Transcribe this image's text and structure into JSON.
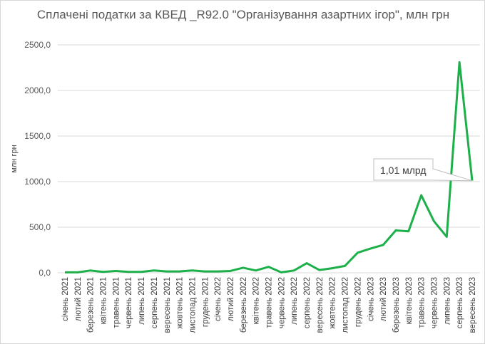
{
  "chart_data": {
    "type": "line",
    "title": "Сплачені податки за КВЕД _R92.0 \"Організування азартних ігор\", млн грн",
    "xlabel": "",
    "ylabel": "млн грн",
    "ylim": [
      0,
      2500
    ],
    "yticks": [
      "0,0",
      "500,0",
      "1000,0",
      "1500,0",
      "2000,0",
      "2500,0"
    ],
    "grid": true,
    "color": "#1db04a",
    "categories": [
      "січень 2021",
      "лютий 2021",
      "березень 2021",
      "квітень 2021",
      "травень 2021",
      "червень 2021",
      "липень 2021",
      "серпень 2021",
      "вересень 2021",
      "жовтень 2021",
      "листопад 2021",
      "грудень 2021",
      "січень 2022",
      "лютий 2022",
      "березень 2022",
      "квітень 2022",
      "травень 2022",
      "червень 2022",
      "липень 2022",
      "серпень 2022",
      "вересень 2022",
      "жовтень 2022",
      "листопад 2022",
      "грудень 2022",
      "січень 2023",
      "лютий 2023",
      "березень 2023",
      "квітень 2023",
      "травень 2023",
      "червень 2023",
      "липень 2023",
      "серпень 2023",
      "вересень 2023"
    ],
    "values": [
      5,
      5,
      25,
      10,
      20,
      10,
      10,
      25,
      15,
      15,
      25,
      15,
      15,
      20,
      55,
      25,
      65,
      5,
      25,
      105,
      30,
      50,
      75,
      220,
      265,
      305,
      465,
      455,
      850,
      565,
      395,
      2310,
      1010
    ],
    "annotation": {
      "text": "1,01 млрд",
      "category": "вересень 2023"
    }
  }
}
